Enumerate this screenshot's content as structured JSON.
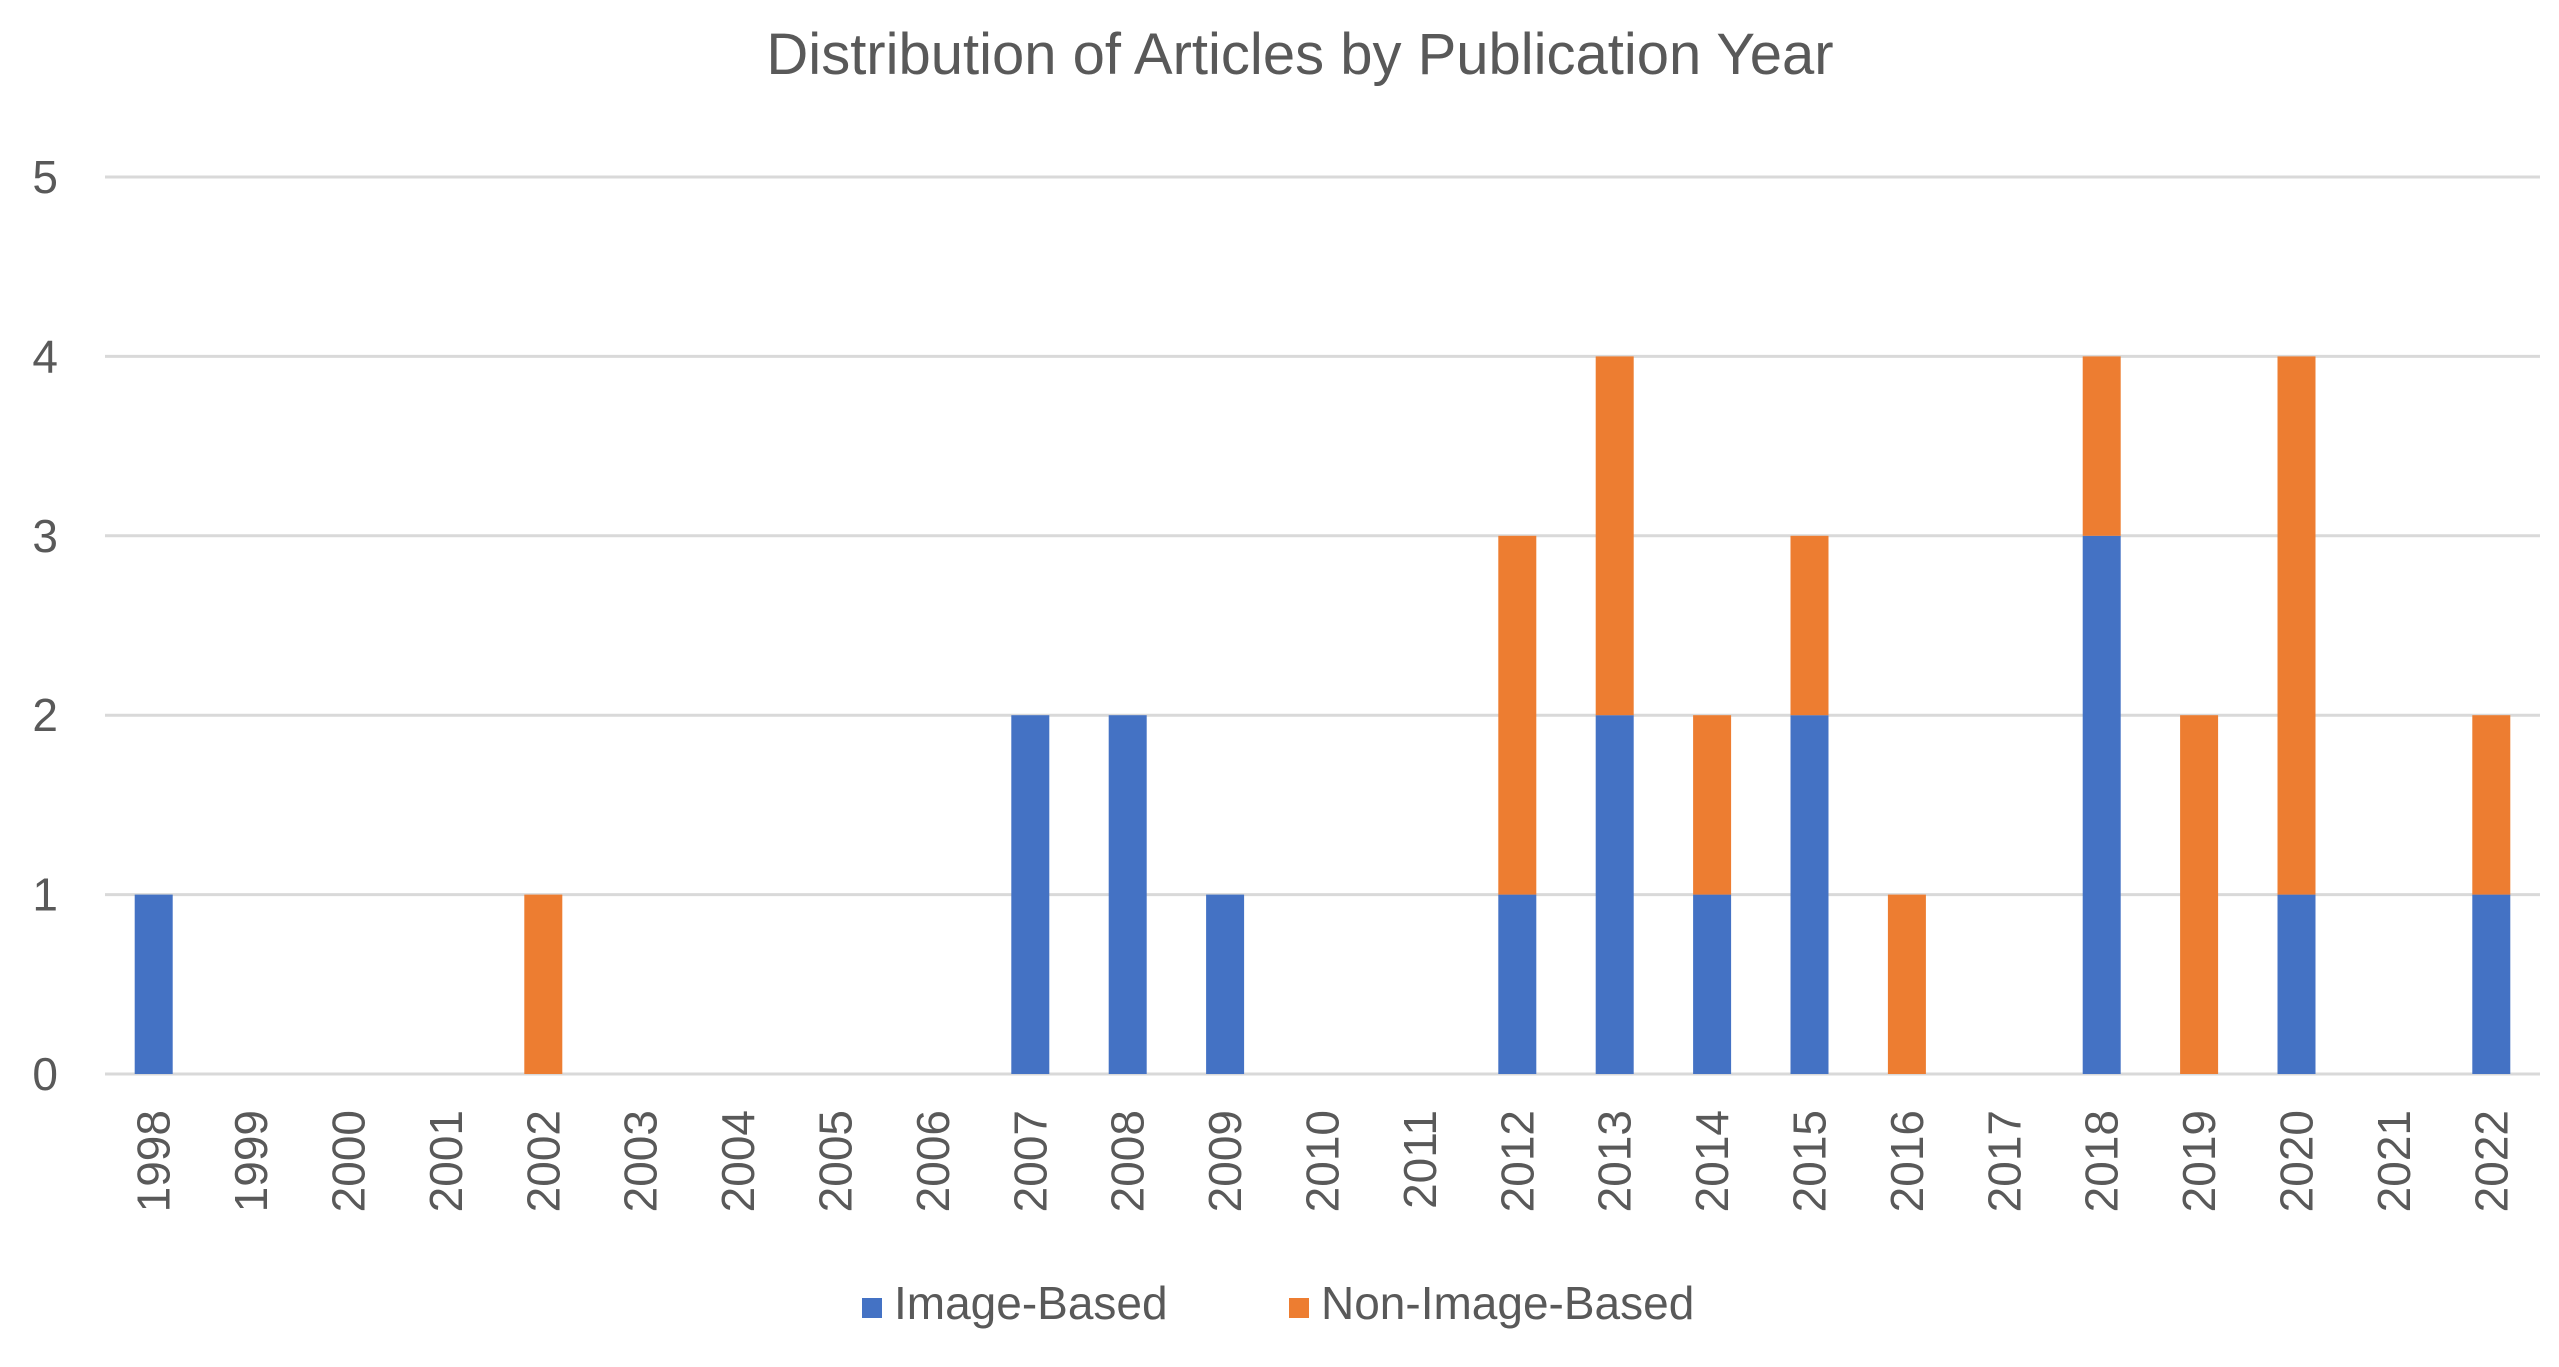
{
  "chart_data": {
    "type": "bar",
    "stacked": true,
    "title": "Distribution of Articles by Publication Year",
    "xlabel": "",
    "ylabel": "",
    "ylim": [
      0,
      5
    ],
    "y_ticks": [
      0,
      1,
      2,
      3,
      4,
      5
    ],
    "grid": true,
    "legend_position": "bottom",
    "categories": [
      "1998",
      "1999",
      "2000",
      "2001",
      "2002",
      "2003",
      "2004",
      "2005",
      "2006",
      "2007",
      "2008",
      "2009",
      "2010",
      "2011",
      "2012",
      "2013",
      "2014",
      "2015",
      "2016",
      "2017",
      "2018",
      "2019",
      "2020",
      "2021",
      "2022"
    ],
    "series": [
      {
        "name": "Image-Based",
        "color": "#4472c4",
        "values": [
          1,
          0,
          0,
          0,
          0,
          0,
          0,
          0,
          0,
          2,
          2,
          1,
          0,
          0,
          1,
          2,
          1,
          2,
          0,
          0,
          3,
          0,
          1,
          0,
          1
        ]
      },
      {
        "name": "Non-Image-Based",
        "color": "#ed7d31",
        "values": [
          0,
          0,
          0,
          0,
          1,
          0,
          0,
          0,
          0,
          0,
          0,
          0,
          0,
          0,
          2,
          2,
          1,
          1,
          1,
          0,
          1,
          2,
          3,
          0,
          1
        ]
      }
    ]
  }
}
